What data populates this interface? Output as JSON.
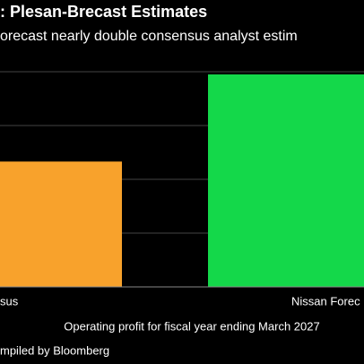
{
  "chart_data": {
    "type": "bar",
    "title": ": Plesan-Brecast Estimates",
    "subtitle": "orecast nearly double consensus analyst estim",
    "categories": [
      "sus",
      "Nissan Forec"
    ],
    "values": [
      2.33,
      3.95
    ],
    "colors": [
      "#f8a22c",
      "#14d84a"
    ],
    "ylim": [
      0,
      4.5
    ],
    "yticks": [
      1,
      2,
      3,
      4
    ],
    "grid": true,
    "x_label": "Operating profit for fiscal year ending March 2027",
    "source": "mpiled by Bloomberg"
  }
}
